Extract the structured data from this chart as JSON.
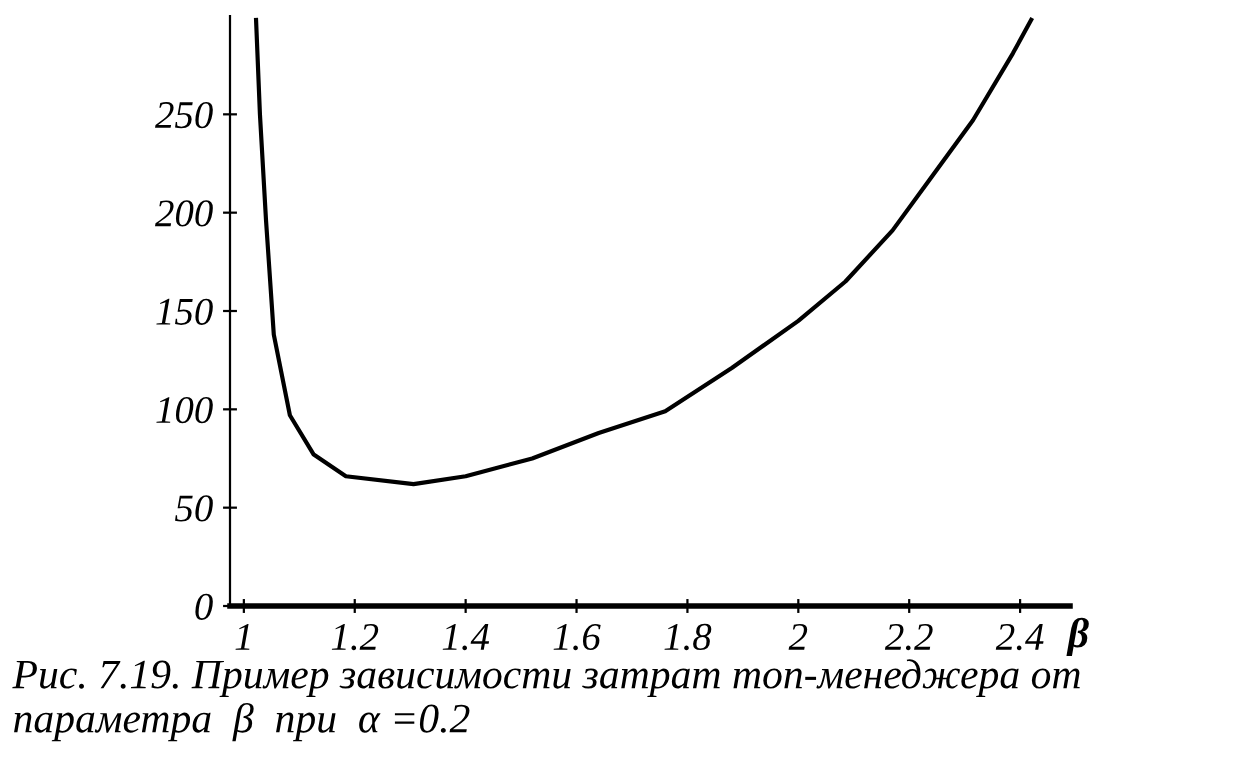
{
  "chart_data": {
    "type": "line",
    "xlabel": "β",
    "annotations": [
      "Рис. 7.19. Пример зависимости затрат топ-менеджера от параметра  β  при  α =0.2"
    ],
    "series": [
      {
        "color": "#000000",
        "x": [
          1.022,
          1.029,
          1.04,
          1.054,
          1.083,
          1.126,
          1.184,
          1.306,
          1.4,
          1.52,
          1.64,
          1.76,
          1.88,
          2.0,
          2.085,
          2.17,
          2.24,
          2.315,
          2.387,
          2.42
        ],
        "values": [
          298,
          250,
          196,
          138,
          97,
          77,
          66,
          62,
          66,
          75,
          88,
          99,
          121,
          145,
          165,
          191,
          218,
          247,
          281,
          298
        ]
      }
    ],
    "xlim": [
      0.975,
      2.49
    ],
    "ylim": [
      0,
      300
    ],
    "xticks": [
      1,
      1.2,
      1.4,
      1.6,
      1.8,
      2,
      2.2,
      2.4
    ],
    "yticks": [
      0,
      50,
      100,
      150,
      200,
      250
    ],
    "grid": false,
    "legend": false,
    "marker": "none",
    "line_style": "solid"
  }
}
